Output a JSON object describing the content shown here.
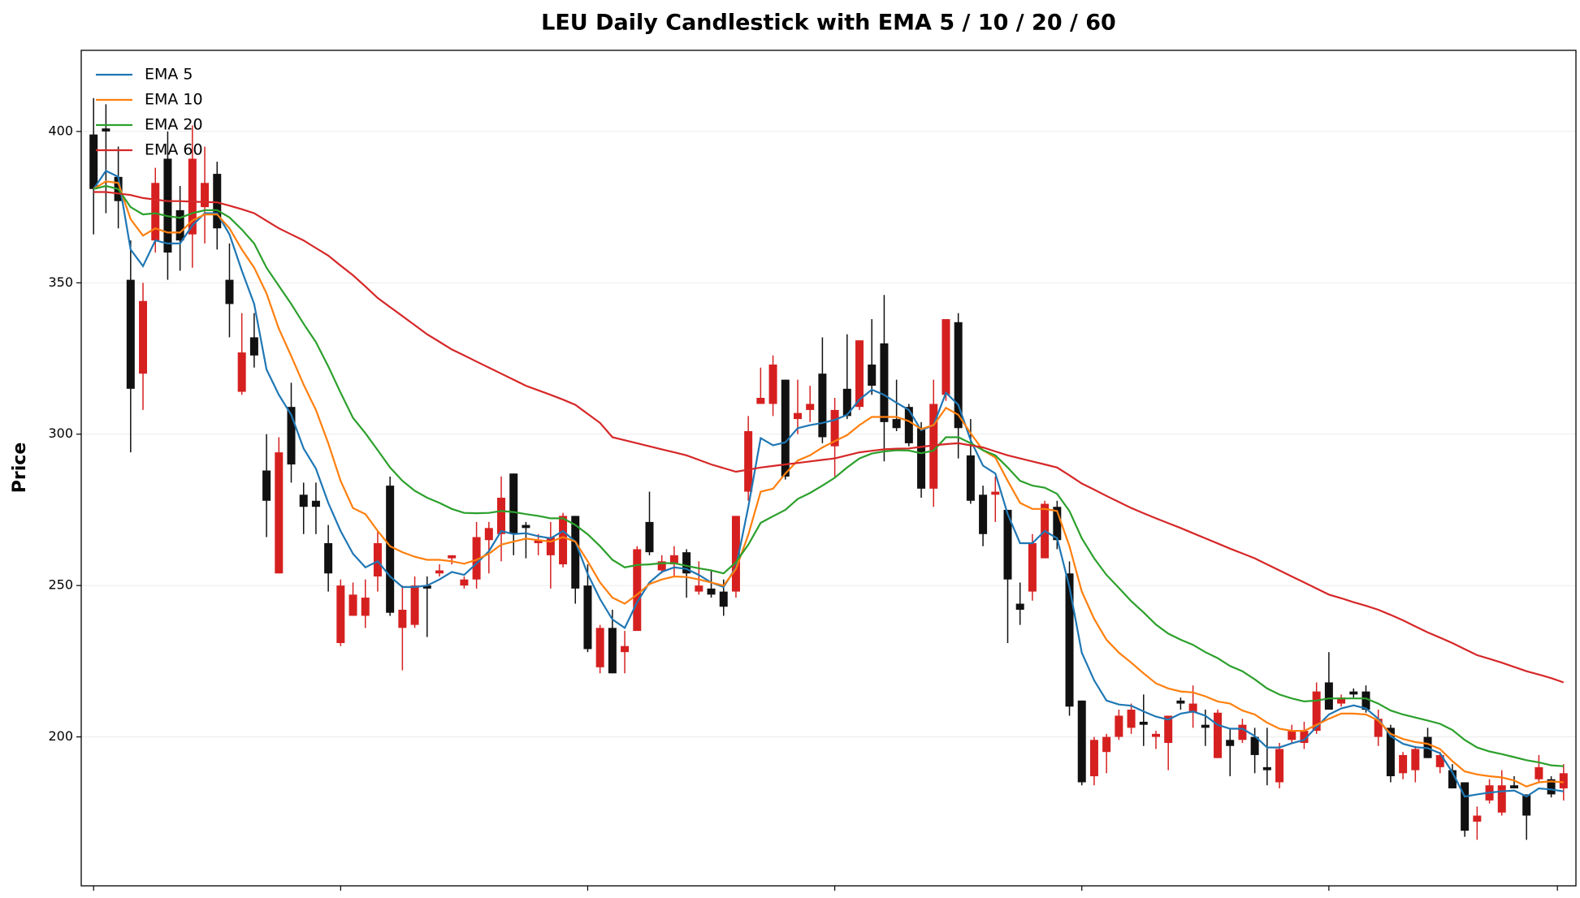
{
  "chart_data": {
    "type": "candlestick",
    "title": "LEU Daily Candlestick with EMA 5 / 10 / 20 / 60",
    "ylabel": "Price",
    "xlim": [
      -1,
      120
    ],
    "xticks": [
      0,
      20,
      40,
      60,
      80,
      100,
      118.5
    ],
    "ylim": [
      150.8,
      426.8
    ],
    "yticks": [
      200,
      250,
      300,
      350,
      400
    ],
    "grid": true,
    "legend": "upper left",
    "up_color": "#d62020",
    "down_color": "#111111",
    "ohlc": {
      "open": [
        399,
        401,
        385,
        351,
        320,
        364,
        391,
        374,
        366,
        375,
        386,
        351,
        314,
        332,
        288,
        254,
        309,
        280,
        278,
        264,
        231,
        240,
        240,
        253,
        283,
        236,
        237,
        250,
        254,
        259,
        250,
        252,
        265,
        267,
        287,
        270,
        264,
        260,
        257,
        273,
        250,
        223,
        236,
        228,
        235,
        271,
        255,
        257,
        261,
        248,
        249,
        248,
        248,
        281,
        310,
        310,
        318,
        305,
        308,
        320,
        296,
        315,
        309,
        323,
        330,
        305,
        309,
        302,
        282,
        313,
        337,
        293,
        280,
        280,
        275,
        244,
        248,
        259,
        276,
        254,
        212,
        187,
        195,
        200,
        203,
        205,
        200,
        198,
        212,
        208,
        204,
        193,
        199,
        199,
        200,
        190,
        185,
        199,
        198,
        202,
        218,
        211,
        215,
        215,
        200,
        203,
        188,
        189,
        200,
        190,
        189,
        185,
        172,
        179,
        175,
        184,
        181,
        186,
        186,
        183
      ],
      "high": [
        411,
        409,
        395,
        364,
        350,
        388,
        400,
        382,
        402,
        395,
        390,
        363,
        340,
        340,
        300,
        299,
        317,
        284,
        284,
        270,
        252,
        251,
        252,
        268,
        286,
        250,
        253,
        253,
        257,
        260,
        253,
        271,
        271,
        286,
        287,
        271,
        267,
        271,
        274,
        273,
        257,
        237,
        242,
        235,
        263,
        281,
        260,
        263,
        262,
        258,
        255,
        252,
        273,
        306,
        322,
        326,
        318,
        318,
        316,
        332,
        312,
        333,
        331,
        338,
        346,
        318,
        310,
        304,
        318,
        338,
        340,
        305,
        283,
        286,
        275,
        251,
        267,
        278,
        278,
        258,
        212,
        200,
        201,
        209,
        211,
        214,
        202,
        207,
        213,
        217,
        209,
        209,
        203,
        206,
        203,
        203,
        198,
        204,
        205,
        218,
        228,
        214,
        216,
        217,
        209,
        204,
        195,
        197,
        203,
        195,
        191,
        185,
        177,
        186,
        189,
        187,
        181,
        194,
        187,
        191
      ],
      "low": [
        366,
        373,
        368,
        294,
        308,
        360,
        351,
        354,
        355,
        363,
        361,
        332,
        313,
        322,
        266,
        254,
        284,
        267,
        267,
        248,
        230,
        240,
        236,
        248,
        240,
        222,
        236,
        233,
        253,
        257,
        249,
        249,
        254,
        258,
        260,
        259,
        260,
        249,
        256,
        244,
        228,
        221,
        221,
        221,
        235,
        260,
        254,
        253,
        246,
        247,
        246,
        240,
        246,
        278,
        310,
        306,
        285,
        300,
        304,
        297,
        286,
        305,
        308,
        313,
        291,
        301,
        296,
        279,
        276,
        311,
        292,
        277,
        263,
        271,
        231,
        237,
        245,
        259,
        262,
        207,
        184,
        184,
        188,
        199,
        201,
        197,
        196,
        189,
        209,
        203,
        197,
        193,
        187,
        198,
        188,
        184,
        183,
        198,
        196,
        201,
        209,
        210,
        213,
        208,
        197,
        185,
        186,
        185,
        193,
        188,
        183,
        167,
        166,
        178,
        174,
        183,
        166,
        185,
        180,
        179
      ],
      "close": [
        381,
        400,
        377,
        315,
        344,
        383,
        360,
        364,
        391,
        383,
        368,
        343,
        327,
        326,
        278,
        294,
        290,
        276,
        276,
        254,
        250,
        247,
        246,
        264,
        241,
        242,
        250,
        249,
        255,
        260,
        252,
        266,
        269,
        279,
        267,
        269,
        265,
        266,
        273,
        249,
        229,
        236,
        221,
        230,
        262,
        261,
        258,
        260,
        254,
        250,
        247,
        243,
        273,
        301,
        312,
        323,
        286,
        307,
        310,
        299,
        308,
        306,
        331,
        316,
        304,
        302,
        297,
        282,
        310,
        338,
        302,
        278,
        267,
        281,
        252,
        242,
        264,
        277,
        265,
        210,
        185,
        199,
        200,
        207,
        209,
        204,
        201,
        207,
        211,
        211,
        203,
        208,
        197,
        204,
        194,
        189,
        196,
        202,
        202,
        215,
        209,
        213,
        214,
        209,
        206,
        187,
        194,
        196,
        193,
        194,
        183,
        169,
        174,
        184,
        184,
        183,
        174,
        190,
        181,
        188
      ]
    },
    "lines": [
      {
        "name": "EMA 5",
        "color": "#1f77b4",
        "values": [
          381,
          387,
          385,
          361,
          355.5,
          364,
          363,
          363,
          369,
          373,
          373,
          366,
          354,
          343,
          321.4,
          313,
          306.4,
          295.3,
          288.6,
          277.3,
          268,
          260.5,
          256,
          258,
          253,
          249.5,
          249.5,
          250,
          252,
          254.5,
          253.5,
          257.3,
          261.3,
          268,
          267,
          267.3,
          266.3,
          265.6,
          268,
          264.5,
          253.8,
          245.5,
          238.8,
          236,
          244.5,
          251,
          254.5,
          256,
          255.5,
          253.5,
          251,
          249.5,
          256,
          276,
          298.7,
          296.3,
          297.3,
          302,
          303,
          303.7,
          304.7,
          306.4,
          311.4,
          314.7,
          313,
          310.4,
          308,
          301.3,
          303,
          313.7,
          309.7,
          298,
          289.6,
          287,
          273.6,
          264,
          264,
          268,
          265.6,
          249.5,
          227.8,
          218.7,
          212,
          210.7,
          210.3,
          208.4,
          206.7,
          205.7,
          207.7,
          208.4,
          207,
          204,
          202.7,
          202.7,
          200.3,
          196.5,
          196.5,
          197.9,
          199,
          203.3,
          207.4,
          209.4,
          210.4,
          209.4,
          206,
          200.3,
          197.7,
          196.6,
          196.3,
          194.6,
          188.3,
          180.3,
          181,
          181.6,
          182,
          182.3,
          180.3,
          183,
          182.6,
          182
        ]
      },
      {
        "name": "EMA 10",
        "color": "#ff7f0e",
        "values": [
          381,
          383.5,
          383,
          371,
          365.6,
          368,
          366.6,
          366.6,
          370.6,
          372.6,
          372.6,
          368,
          361,
          355,
          346.5,
          334.8,
          325.8,
          316.4,
          308,
          297,
          284.6,
          275.6,
          273.6,
          268,
          263,
          261,
          259.5,
          258.5,
          258.5,
          258,
          257.2,
          258.5,
          260.5,
          263.5,
          264.5,
          265.5,
          265,
          264.5,
          266,
          264.5,
          258,
          251,
          246,
          244,
          247,
          250.5,
          252,
          253,
          252.8,
          252,
          251,
          250,
          255.5,
          266.8,
          281,
          282,
          287,
          291.3,
          293,
          295.6,
          297.7,
          299.7,
          303,
          305.7,
          305.7,
          305.7,
          304.3,
          301.7,
          303,
          308.7,
          306.4,
          300.3,
          294.7,
          292.3,
          284.6,
          277.3,
          275.3,
          275.3,
          274.6,
          263,
          248,
          239,
          232.1,
          227.8,
          224.5,
          221,
          217.7,
          216,
          215,
          214.7,
          213.4,
          211.7,
          211,
          208.7,
          207.4,
          204.7,
          202.7,
          202,
          202,
          204,
          206,
          207.7,
          207.7,
          207.4,
          205.4,
          201,
          199.3,
          198.3,
          197.7,
          196,
          192,
          188.6,
          187.6,
          187,
          186.6,
          185.6,
          183.6,
          185,
          185.3,
          185
        ]
      },
      {
        "name": "EMA 20",
        "color": "#2ca02c",
        "values": [
          381,
          382,
          381,
          375,
          372.6,
          373,
          372,
          371.5,
          373,
          374,
          374,
          371.6,
          367.6,
          363,
          355,
          349,
          343,
          336.5,
          330.4,
          322.4,
          313.7,
          305.4,
          300.3,
          294.7,
          289,
          284.6,
          281.3,
          279,
          277.3,
          275.3,
          274,
          273.9,
          274,
          274.6,
          274.3,
          273.6,
          273,
          272.2,
          272.2,
          270,
          266.9,
          263,
          258.5,
          256,
          256.8,
          257,
          257.4,
          257.4,
          256.5,
          255.7,
          255,
          254,
          257.7,
          263.5,
          270.7,
          272.9,
          275,
          278.6,
          280.6,
          283,
          285.6,
          289,
          292,
          293.6,
          294.3,
          294.7,
          294.6,
          293.7,
          294.6,
          299,
          299,
          297,
          294.7,
          293,
          289,
          284.6,
          283,
          282.3,
          280.3,
          274.6,
          265.6,
          259,
          253.5,
          249.2,
          244.8,
          241.1,
          237.1,
          234.1,
          232.1,
          230.4,
          228,
          226,
          223.4,
          221.7,
          219,
          216,
          214,
          212.7,
          211.7,
          212,
          212.7,
          212.7,
          212.7,
          212.7,
          211,
          208.7,
          207.4,
          206.4,
          205.4,
          204.3,
          202.3,
          199,
          196.5,
          195.2,
          194.3,
          193.3,
          192.3,
          191.6,
          190.6,
          190.3
        ]
      },
      {
        "name": "EMA 60",
        "color": "#d62728",
        "values": [
          380,
          380,
          379.5,
          379,
          378,
          377.5,
          377,
          377,
          376.8,
          376.7,
          376.6,
          375.5,
          374.3,
          373,
          370.5,
          368,
          366,
          364,
          361.5,
          359,
          355.7,
          352.5,
          348.8,
          345,
          342,
          339,
          336,
          333,
          330.5,
          328,
          326,
          324,
          322,
          320,
          318,
          316,
          314.5,
          313,
          311.4,
          309.7,
          306.7,
          303.7,
          299,
          298,
          297,
          296,
          295,
          294,
          293,
          291.5,
          290,
          288.8,
          287.6,
          288.3,
          289,
          289.5,
          290,
          290.5,
          291,
          291.5,
          292,
          293,
          294,
          294.5,
          295,
          295.2,
          295.3,
          295.8,
          296.3,
          296.7,
          297,
          296.3,
          295.6,
          294.3,
          293,
          292,
          291,
          290,
          289,
          286.4,
          283.7,
          281.7,
          279.6,
          277.6,
          275.6,
          273.9,
          272.2,
          270.6,
          269,
          267.3,
          265.6,
          263.9,
          262.2,
          260.6,
          259,
          257,
          255,
          253,
          251,
          249,
          247,
          245.8,
          244.5,
          243.3,
          242,
          240.3,
          238.5,
          236.5,
          234.5,
          232.8,
          231,
          229,
          227,
          225.8,
          224.5,
          223.1,
          221.7,
          220.6,
          219.4,
          218
        ]
      }
    ]
  }
}
